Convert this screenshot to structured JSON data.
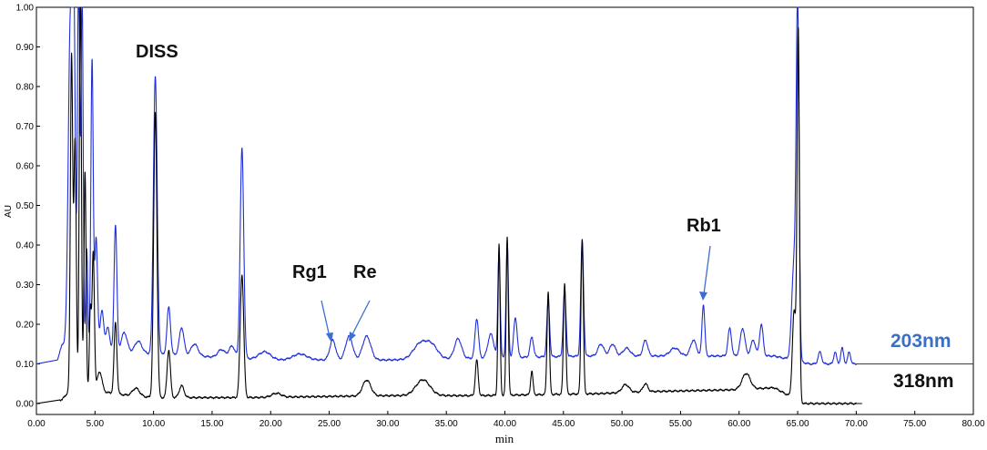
{
  "chart_data": {
    "type": "line",
    "xlabel": "min",
    "ylabel": "AU",
    "xlim": [
      0,
      80
    ],
    "ylim": [
      -0.01,
      1.0
    ],
    "x_ticks": [
      "0.00",
      "5.00",
      "10.00",
      "15.00",
      "20.00",
      "25.00",
      "30.00",
      "35.00",
      "40.00",
      "45.00",
      "50.00",
      "55.00",
      "60.00",
      "65.00",
      "70.00",
      "75.00",
      "80.00"
    ],
    "y_ticks": [
      "0.00",
      "0.10",
      "0.20",
      "0.30",
      "0.40",
      "0.50",
      "0.60",
      "0.70",
      "0.80",
      "0.90",
      "1.00"
    ],
    "series": [
      {
        "name": "203nm",
        "color": "#1f2fd6",
        "baseline": 0.12,
        "end_at": 80,
        "peaks": [
          [
            2.9,
            0.82,
            0.18
          ],
          [
            3.2,
            0.75,
            0.12
          ],
          [
            3.6,
            0.95,
            0.1
          ],
          [
            3.9,
            0.9,
            0.09
          ],
          [
            4.3,
            0.25,
            0.08
          ],
          [
            4.75,
            0.73,
            0.1
          ],
          [
            5.1,
            0.28,
            0.12
          ],
          [
            5.6,
            0.1,
            0.15
          ],
          [
            6.1,
            0.06,
            0.15
          ],
          [
            6.75,
            0.32,
            0.12
          ],
          [
            7.5,
            0.05,
            0.25
          ],
          [
            8.7,
            0.03,
            0.3
          ],
          [
            10.15,
            0.7,
            0.16
          ],
          [
            11.3,
            0.12,
            0.15
          ],
          [
            12.4,
            0.07,
            0.2
          ],
          [
            13.5,
            0.03,
            0.3
          ],
          [
            15.8,
            0.02,
            0.3
          ],
          [
            16.7,
            0.03,
            0.25
          ],
          [
            17.55,
            0.53,
            0.15
          ],
          [
            19.5,
            0.02,
            0.5
          ],
          [
            22.5,
            0.015,
            0.6
          ],
          [
            25.3,
            0.05,
            0.25
          ],
          [
            26.7,
            0.06,
            0.3
          ],
          [
            28.2,
            0.06,
            0.35
          ],
          [
            32.8,
            0.04,
            0.6
          ],
          [
            33.8,
            0.03,
            0.5
          ],
          [
            36.0,
            0.05,
            0.3
          ],
          [
            37.6,
            0.1,
            0.15
          ],
          [
            38.8,
            0.06,
            0.25
          ],
          [
            39.5,
            0.27,
            0.1
          ],
          [
            40.2,
            0.29,
            0.1
          ],
          [
            40.9,
            0.1,
            0.15
          ],
          [
            42.3,
            0.05,
            0.15
          ],
          [
            43.7,
            0.14,
            0.12
          ],
          [
            45.1,
            0.17,
            0.12
          ],
          [
            46.6,
            0.29,
            0.12
          ],
          [
            48.2,
            0.03,
            0.25
          ],
          [
            49.2,
            0.03,
            0.25
          ],
          [
            50.4,
            0.02,
            0.3
          ],
          [
            52.0,
            0.04,
            0.2
          ],
          [
            54.5,
            0.02,
            0.4
          ],
          [
            56.1,
            0.04,
            0.25
          ],
          [
            56.95,
            0.13,
            0.12
          ],
          [
            59.2,
            0.07,
            0.15
          ],
          [
            60.3,
            0.07,
            0.2
          ],
          [
            61.2,
            0.04,
            0.2
          ],
          [
            61.9,
            0.08,
            0.15
          ],
          [
            64.7,
            0.25,
            0.2
          ],
          [
            65.0,
            0.84,
            0.12
          ],
          [
            66.9,
            0.03,
            0.15
          ],
          [
            68.2,
            0.03,
            0.12
          ],
          [
            68.8,
            0.04,
            0.12
          ],
          [
            69.4,
            0.03,
            0.12
          ]
        ],
        "segments": [
          [
            0,
            0.1
          ],
          [
            1.8,
            0.11
          ],
          [
            2.2,
            0.15
          ],
          [
            7,
            0.13
          ],
          [
            20,
            0.11
          ],
          [
            30,
            0.11
          ],
          [
            47,
            0.12
          ],
          [
            63,
            0.12
          ],
          [
            66,
            0.1
          ],
          [
            70,
            0.1
          ],
          [
            80,
            0.1
          ]
        ]
      },
      {
        "name": "318nm",
        "color": "#000000",
        "baseline": 0.0,
        "end_at": 70.5,
        "peaks": [
          [
            3.0,
            0.84,
            0.1
          ],
          [
            3.3,
            0.62,
            0.1
          ],
          [
            3.75,
            1.0,
            0.09
          ],
          [
            4.15,
            0.55,
            0.09
          ],
          [
            4.6,
            0.2,
            0.08
          ],
          [
            4.85,
            0.35,
            0.1
          ],
          [
            5.4,
            0.05,
            0.2
          ],
          [
            6.75,
            0.18,
            0.12
          ],
          [
            8.5,
            0.02,
            0.3
          ],
          [
            10.15,
            0.72,
            0.14
          ],
          [
            11.3,
            0.12,
            0.14
          ],
          [
            12.4,
            0.03,
            0.2
          ],
          [
            17.55,
            0.31,
            0.15
          ],
          [
            20.5,
            0.01,
            0.4
          ],
          [
            28.2,
            0.04,
            0.35
          ],
          [
            33.0,
            0.04,
            0.6
          ],
          [
            37.6,
            0.09,
            0.12
          ],
          [
            39.5,
            0.38,
            0.09
          ],
          [
            40.2,
            0.4,
            0.09
          ],
          [
            42.3,
            0.06,
            0.1
          ],
          [
            43.7,
            0.26,
            0.1
          ],
          [
            45.1,
            0.28,
            0.1
          ],
          [
            46.6,
            0.39,
            0.1
          ],
          [
            50.3,
            0.02,
            0.3
          ],
          [
            52.0,
            0.02,
            0.2
          ],
          [
            60.6,
            0.04,
            0.35
          ],
          [
            64.7,
            0.22,
            0.15
          ],
          [
            65.05,
            0.93,
            0.1
          ]
        ],
        "segments": [
          [
            0,
            0.0
          ],
          [
            2.2,
            0.01
          ],
          [
            3,
            0.04
          ],
          [
            8,
            0.02
          ],
          [
            10,
            0.015
          ],
          [
            18,
            0.015
          ],
          [
            30,
            0.02
          ],
          [
            38,
            0.02
          ],
          [
            48,
            0.025
          ],
          [
            52,
            0.03
          ],
          [
            60,
            0.035
          ],
          [
            63,
            0.04
          ],
          [
            65.5,
            0.0
          ],
          [
            70,
            0.0
          ],
          [
            70.5,
            0.0
          ]
        ]
      }
    ],
    "annotations": [
      {
        "text": "DISS"
      },
      {
        "text": "Rg1"
      },
      {
        "text": "Re"
      },
      {
        "text": "Rb1"
      }
    ]
  },
  "labels": {
    "trace_203": "203nm",
    "trace_318": "318nm",
    "anno_diss": "DISS",
    "anno_rg1": "Rg1",
    "anno_re": "Re",
    "anno_rb1": "Rb1",
    "xlabel": "min",
    "ylabel": "AU"
  },
  "colors": {
    "blue_label": "#3a6fc4",
    "black_label": "#111111",
    "arrow": "#3b6fd4"
  }
}
